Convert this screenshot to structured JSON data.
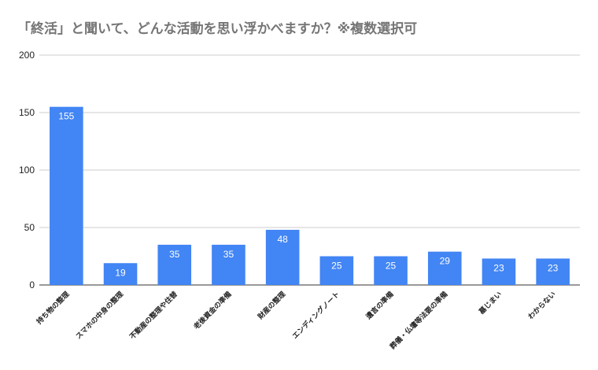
{
  "chart_data": {
    "type": "bar",
    "title": "「終活」と聞いて、どんな活動を思い浮かべますか？※複数選択可",
    "categories": [
      "持ち物の整理",
      "スマホの中身の整理",
      "不動産の整理や住替",
      "老後資金の準備",
      "財産の整理",
      "エンディングノート",
      "遺言の準備",
      "葬儀・仏壇等法要の準備",
      "墓じまい",
      "わからない"
    ],
    "values": [
      155,
      19,
      35,
      35,
      48,
      25,
      25,
      29,
      23,
      23
    ],
    "data_labels": [
      "155",
      "19",
      "35",
      "35",
      "48",
      "25",
      "25",
      "29",
      "23",
      "23"
    ],
    "yticks": [
      "0",
      "50",
      "100",
      "150",
      "200"
    ],
    "ylim": [
      0,
      200
    ],
    "grid": true,
    "legend": "none",
    "colors": {
      "bar": "#4285f4",
      "grid": "#cccccc",
      "axis": "#333333",
      "title": "#757575"
    }
  }
}
